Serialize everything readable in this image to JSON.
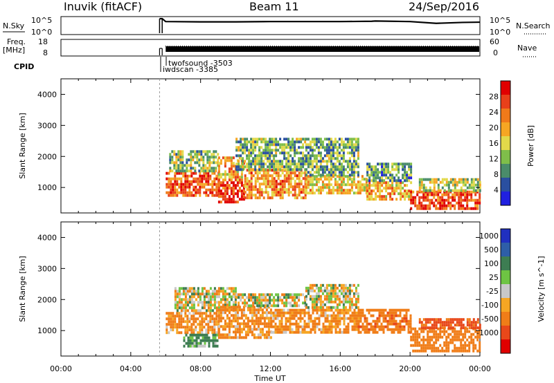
{
  "header": {
    "station": "Inuvik (fitACF)",
    "beam": "Beam 11",
    "date": "24/Sep/2016"
  },
  "aux": {
    "nsky_label": "N.Sky",
    "nsky_ticks": [
      "10^5",
      "10^0"
    ],
    "nsearch_label": "N.Search",
    "nsearch_ticks": [
      "10^5",
      "10^0"
    ],
    "freq_label_1": "Freq.",
    "freq_label_2": "[MHz]",
    "freq_ticks": [
      "18",
      "8"
    ],
    "nave_label": "Nave",
    "nave_ticks": [
      "60",
      "0"
    ],
    "cpid_label": "CPID",
    "cpid_entries": [
      "twofsound -3503",
      "iwdscan -3385"
    ]
  },
  "colors": {
    "power": [
      "#2020e0",
      "#2a4fa0",
      "#4a8c6a",
      "#7fbe4a",
      "#e2d94a",
      "#f6a623",
      "#f07a1a",
      "#e8401a",
      "#e00000"
    ],
    "velocity": [
      "#2030c0",
      "#2e5ea8",
      "#3d7d52",
      "#6ec443",
      "#c8c8c8",
      "#f6a623",
      "#f07d18",
      "#e8481a",
      "#e00000"
    ]
  },
  "chart_data": [
    {
      "type": "line",
      "title": "N.Sky / N.Search",
      "x_unit": "hours UT",
      "xlim": [
        0,
        24
      ],
      "series": [
        {
          "name": "N.Sky",
          "x": [
            5.65,
            5.75,
            5.8,
            6.0,
            8,
            10,
            12,
            14,
            16,
            17.8,
            18,
            20,
            21.5,
            22,
            23,
            24
          ],
          "y": [
            1.0,
            1.0,
            1.0,
            0.8,
            0.78,
            0.78,
            0.8,
            0.8,
            0.8,
            0.82,
            0.84,
            0.8,
            0.68,
            0.7,
            0.74,
            0.76
          ]
        }
      ],
      "ylim": [
        0,
        1
      ]
    },
    {
      "type": "line",
      "title": "Freq. / Nave",
      "x_unit": "hours UT",
      "xlim": [
        0,
        24
      ],
      "series": [
        {
          "name": "Freq.",
          "x": [
            5.65,
            5.9,
            6.0,
            24
          ],
          "y": [
            11,
            11,
            11,
            11
          ]
        },
        {
          "name": "Nave",
          "x": [
            5.65,
            5.9,
            6.0,
            24
          ],
          "y": [
            30,
            30,
            30,
            30
          ]
        }
      ],
      "ylim": [
        8,
        18
      ]
    },
    {
      "type": "heatmap",
      "title": "",
      "xlabel": "",
      "ylabel": "Slant Range [km]",
      "xlim": [
        0,
        24
      ],
      "ylim": [
        180,
        4500
      ],
      "yticks": [
        1000,
        2000,
        3000,
        4000
      ],
      "colorbar_label": "Power [dB]",
      "colorbar_ticks": [
        4,
        8,
        12,
        16,
        20,
        24,
        28
      ],
      "colorbar_range": [
        0,
        32
      ],
      "data_start_hour": 6.0,
      "regions": [
        {
          "x0": 6.0,
          "x1": 9.0,
          "y0": 700,
          "y1": 1500,
          "value": 26
        },
        {
          "x0": 6.2,
          "x1": 9.0,
          "y0": 1500,
          "y1": 2200,
          "value": 13
        },
        {
          "x0": 9.0,
          "x1": 10.5,
          "y0": 500,
          "y1": 1200,
          "value": 28
        },
        {
          "x0": 9.0,
          "x1": 10.5,
          "y0": 1200,
          "y1": 2000,
          "value": 20
        },
        {
          "x0": 10.5,
          "x1": 14.0,
          "y0": 700,
          "y1": 1600,
          "value": 22
        },
        {
          "x0": 10.0,
          "x1": 14.0,
          "y0": 1600,
          "y1": 2600,
          "value": 12
        },
        {
          "x0": 14.0,
          "x1": 17.5,
          "y0": 800,
          "y1": 1400,
          "value": 18
        },
        {
          "x0": 14.0,
          "x1": 17.0,
          "y0": 1400,
          "y1": 2600,
          "value": 11
        },
        {
          "x0": 17.5,
          "x1": 20.0,
          "y0": 600,
          "y1": 1200,
          "value": 20
        },
        {
          "x0": 17.5,
          "x1": 20.0,
          "y0": 1200,
          "y1": 1800,
          "value": 10
        },
        {
          "x0": 20.0,
          "x1": 24.0,
          "y0": 300,
          "y1": 900,
          "value": 27
        },
        {
          "x0": 20.5,
          "x1": 24.0,
          "y0": 900,
          "y1": 1300,
          "value": 14
        }
      ]
    },
    {
      "type": "heatmap",
      "title": "",
      "xlabel": "Time UT",
      "ylabel": "Slant Range [km]",
      "xlim": [
        0,
        24
      ],
      "ylim": [
        180,
        4500
      ],
      "yticks": [
        1000,
        2000,
        3000,
        4000
      ],
      "xticks": [
        "00:00",
        "04:00",
        "08:00",
        "12:00",
        "16:00",
        "20:00",
        "00:00"
      ],
      "colorbar_label": "Velocity [m s^-1]",
      "colorbar_ticks": [
        "1000",
        "500",
        "100",
        "25",
        "-25",
        "-100",
        "-500",
        "-1000"
      ],
      "data_start_hour": 6.0,
      "regions": [
        {
          "x0": 6.0,
          "x1": 9.0,
          "y0": 900,
          "y1": 1600,
          "value": -150
        },
        {
          "x0": 7.0,
          "x1": 9.0,
          "y0": 500,
          "y1": 900,
          "value": 120
        },
        {
          "x0": 6.5,
          "x1": 10.0,
          "y0": 1600,
          "y1": 2400,
          "value": 0
        },
        {
          "x0": 9.0,
          "x1": 12.0,
          "y0": 800,
          "y1": 1800,
          "value": -150
        },
        {
          "x0": 10.0,
          "x1": 14.0,
          "y0": 1800,
          "y1": 2200,
          "value": 0
        },
        {
          "x0": 12.0,
          "x1": 17.0,
          "y0": 900,
          "y1": 1700,
          "value": -150
        },
        {
          "x0": 14.0,
          "x1": 17.0,
          "y0": 1700,
          "y1": 2500,
          "value": 0
        },
        {
          "x0": 17.0,
          "x1": 20.0,
          "y0": 900,
          "y1": 1700,
          "value": -400
        },
        {
          "x0": 20.0,
          "x1": 24.0,
          "y0": 300,
          "y1": 1100,
          "value": -250
        },
        {
          "x0": 20.5,
          "x1": 24.0,
          "y0": 1100,
          "y1": 1400,
          "value": -600
        }
      ]
    }
  ]
}
